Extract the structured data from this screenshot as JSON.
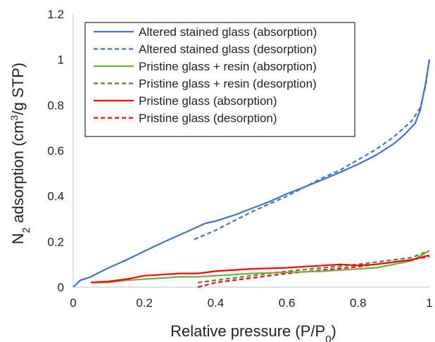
{
  "chart_data": {
    "type": "line",
    "title": "",
    "xlabel": "Relative pressure (P/P",
    "xlabel_sub": "0",
    "xlabel_end": ")",
    "ylabel_prefix": "N",
    "ylabel_sub": "2",
    "ylabel_mid": " adsorption (cm",
    "ylabel_sup": "3",
    "ylabel_end": "/g STP)",
    "xlim": [
      0,
      1
    ],
    "ylim": [
      0,
      1.2
    ],
    "xticks": [
      "0",
      "0.2",
      "0.4",
      "0.6",
      "0.8",
      "1"
    ],
    "yticks": [
      "0",
      "0.2",
      "0.4",
      "0.6",
      "0.8",
      "1",
      "1.2"
    ],
    "xtick_values": [
      0,
      0.2,
      0.4,
      0.6,
      0.8,
      1.0
    ],
    "ytick_values": [
      0,
      0.2,
      0.4,
      0.6,
      0.8,
      1.0,
      1.2
    ],
    "grid": false,
    "legend_position": "top-left",
    "series": [
      {
        "name": "Altered stained glass (absorption)",
        "color": "#4472c4",
        "dash": "solid",
        "points": [
          [
            0,
            0
          ],
          [
            0.02,
            0.03
          ],
          [
            0.05,
            0.045
          ],
          [
            0.08,
            0.07
          ],
          [
            0.1,
            0.085
          ],
          [
            0.15,
            0.12
          ],
          [
            0.2,
            0.158
          ],
          [
            0.25,
            0.195
          ],
          [
            0.3,
            0.23
          ],
          [
            0.35,
            0.265
          ],
          [
            0.37,
            0.28
          ],
          [
            0.4,
            0.29
          ],
          [
            0.45,
            0.315
          ],
          [
            0.5,
            0.345
          ],
          [
            0.55,
            0.375
          ],
          [
            0.6,
            0.41
          ],
          [
            0.65,
            0.44
          ],
          [
            0.7,
            0.472
          ],
          [
            0.75,
            0.505
          ],
          [
            0.8,
            0.54
          ],
          [
            0.85,
            0.58
          ],
          [
            0.9,
            0.63
          ],
          [
            0.93,
            0.67
          ],
          [
            0.96,
            0.72
          ],
          [
            0.975,
            0.78
          ],
          [
            0.99,
            0.9
          ],
          [
            1.0,
            1.0
          ]
        ]
      },
      {
        "name": "Altered stained glass (desorption)",
        "color": "#4472c4",
        "dash": "dashed",
        "points": [
          [
            0.34,
            0.21
          ],
          [
            0.4,
            0.25
          ],
          [
            0.45,
            0.29
          ],
          [
            0.5,
            0.33
          ],
          [
            0.55,
            0.365
          ],
          [
            0.6,
            0.4
          ],
          [
            0.65,
            0.44
          ],
          [
            0.7,
            0.48
          ],
          [
            0.75,
            0.515
          ],
          [
            0.8,
            0.56
          ],
          [
            0.85,
            0.605
          ],
          [
            0.9,
            0.66
          ],
          [
            0.95,
            0.73
          ],
          [
            0.975,
            0.79
          ],
          [
            0.99,
            0.89
          ],
          [
            1.0,
            1.0
          ]
        ]
      },
      {
        "name": "Pristine glass + resin (absorption)",
        "color": "#70ad47",
        "dash": "solid",
        "points": [
          [
            0.05,
            0.02
          ],
          [
            0.1,
            0.02
          ],
          [
            0.15,
            0.03
          ],
          [
            0.2,
            0.035
          ],
          [
            0.25,
            0.04
          ],
          [
            0.3,
            0.045
          ],
          [
            0.35,
            0.045
          ],
          [
            0.4,
            0.05
          ],
          [
            0.5,
            0.06
          ],
          [
            0.6,
            0.065
          ],
          [
            0.7,
            0.07
          ],
          [
            0.8,
            0.08
          ],
          [
            0.85,
            0.085
          ],
          [
            0.9,
            0.1
          ],
          [
            0.95,
            0.115
          ],
          [
            1.0,
            0.16
          ]
        ]
      },
      {
        "name": "Pristine glass + resin (desorption)",
        "color": "#548235",
        "dash": "dashed",
        "points": [
          [
            0.35,
            0.02
          ],
          [
            0.4,
            0.03
          ],
          [
            0.5,
            0.05
          ],
          [
            0.6,
            0.07
          ],
          [
            0.7,
            0.085
          ],
          [
            0.8,
            0.1
          ],
          [
            0.9,
            0.12
          ],
          [
            0.95,
            0.13
          ],
          [
            1.0,
            0.16
          ]
        ]
      },
      {
        "name": "Pristine glass (absorption)",
        "color": "#ff0000",
        "dash": "solid",
        "points": [
          [
            0.05,
            0.02
          ],
          [
            0.1,
            0.025
          ],
          [
            0.15,
            0.035
          ],
          [
            0.2,
            0.05
          ],
          [
            0.25,
            0.055
          ],
          [
            0.3,
            0.06
          ],
          [
            0.35,
            0.06
          ],
          [
            0.4,
            0.07
          ],
          [
            0.5,
            0.08
          ],
          [
            0.6,
            0.085
          ],
          [
            0.7,
            0.095
          ],
          [
            0.75,
            0.1
          ],
          [
            0.8,
            0.095
          ],
          [
            0.85,
            0.1
          ],
          [
            0.9,
            0.11
          ],
          [
            0.95,
            0.12
          ],
          [
            1.0,
            0.14
          ]
        ]
      },
      {
        "name": "Pristine glass (desorption)",
        "color": "#ff0000",
        "dash": "dashed",
        "points": [
          [
            0.35,
            0.0
          ],
          [
            0.4,
            0.02
          ],
          [
            0.5,
            0.04
          ],
          [
            0.6,
            0.06
          ],
          [
            0.7,
            0.075
          ],
          [
            0.8,
            0.09
          ],
          [
            0.9,
            0.11
          ],
          [
            0.95,
            0.12
          ],
          [
            1.0,
            0.135
          ]
        ]
      }
    ]
  }
}
